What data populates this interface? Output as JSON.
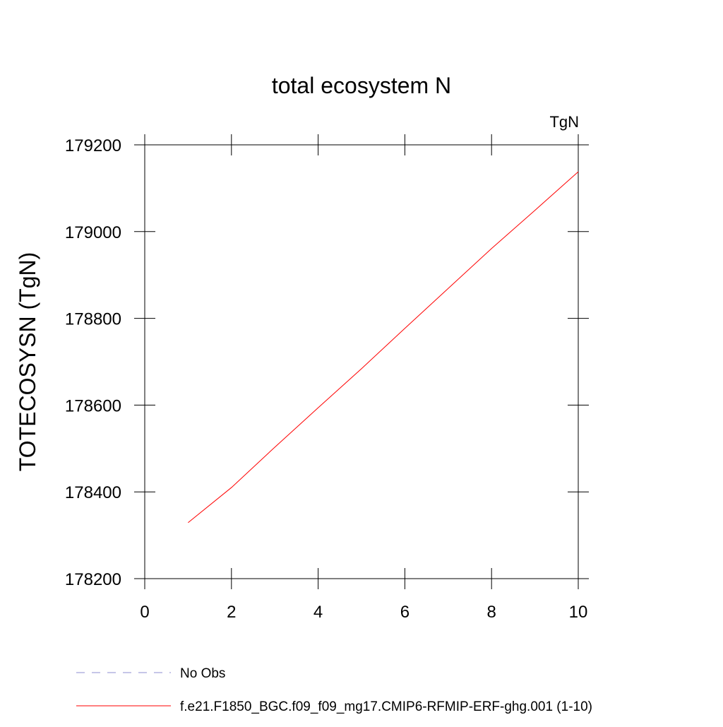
{
  "chart_data": {
    "type": "line",
    "title": "total ecosystem N",
    "units_label": "TgN",
    "y_label": "TOTECOSYSN  (TgN)",
    "x": [
      1,
      2,
      3,
      4,
      5,
      6,
      7,
      8,
      9,
      10
    ],
    "series": [
      {
        "name": "No Obs",
        "color": "#8c8cd0",
        "dashed": true,
        "values": [
          null,
          null,
          null,
          null,
          null,
          null,
          null,
          null,
          null,
          null
        ]
      },
      {
        "name": "f.e21.F1850_BGC.f09_f09_mg17.CMIP6-RFMIP-ERF-ghg.001 (1-10)",
        "color": "#ff0000",
        "dashed": false,
        "values": [
          178329,
          178410,
          178503,
          178594,
          178684,
          178777,
          178869,
          178961,
          179049,
          179138
        ]
      }
    ],
    "xlim": [
      0,
      10
    ],
    "xticks": [
      0,
      2,
      4,
      6,
      8,
      10
    ],
    "ylim": [
      178200,
      179200
    ],
    "yticks": [
      178200,
      178400,
      178600,
      178800,
      179000,
      179200
    ]
  }
}
